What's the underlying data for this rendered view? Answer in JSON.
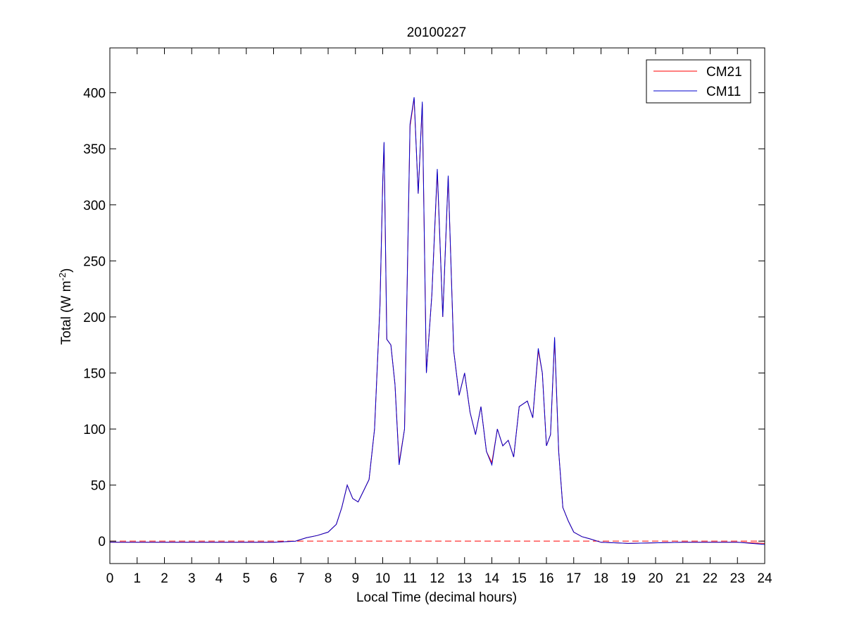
{
  "chart_data": {
    "type": "line",
    "title": "20100227",
    "xlabel": "Local Time (decimal hours)",
    "ylabel_main": "Total (W m",
    "ylabel_sup": "-2",
    "ylabel_tail": ")",
    "xlim": [
      0,
      24
    ],
    "ylim": [
      -20,
      440
    ],
    "xticks": [
      0,
      1,
      2,
      3,
      4,
      5,
      6,
      7,
      8,
      9,
      10,
      11,
      12,
      13,
      14,
      15,
      16,
      17,
      18,
      19,
      20,
      21,
      22,
      23,
      24
    ],
    "yticks": [
      0,
      50,
      100,
      150,
      200,
      250,
      300,
      350,
      400
    ],
    "grid": false,
    "legend_position": "top-right",
    "reference_line": {
      "y": 0,
      "color": "#ff0000",
      "style": "dashed"
    },
    "series": [
      {
        "name": "CM21",
        "color": "#ff0000",
        "x": [
          0,
          2,
          4,
          6,
          6.8,
          7.2,
          7.6,
          8.0,
          8.3,
          8.5,
          8.7,
          8.9,
          9.1,
          9.3,
          9.5,
          9.7,
          9.9,
          10.0,
          10.05,
          10.15,
          10.3,
          10.45,
          10.6,
          10.8,
          11.0,
          11.15,
          11.3,
          11.45,
          11.6,
          11.8,
          12.0,
          12.2,
          12.4,
          12.6,
          12.8,
          13.0,
          13.2,
          13.4,
          13.6,
          13.8,
          14.0,
          14.2,
          14.4,
          14.6,
          14.8,
          15.0,
          15.3,
          15.5,
          15.7,
          15.85,
          16.0,
          16.15,
          16.3,
          16.45,
          16.6,
          16.8,
          17.0,
          17.3,
          17.6,
          18.0,
          19,
          21,
          23,
          24
        ],
        "y": [
          -1,
          -1,
          -1,
          -1,
          0,
          3,
          5,
          8,
          15,
          30,
          50,
          38,
          35,
          45,
          55,
          100,
          210,
          320,
          355,
          180,
          175,
          140,
          70,
          100,
          370,
          395,
          310,
          390,
          150,
          220,
          330,
          200,
          325,
          170,
          130,
          150,
          115,
          95,
          120,
          80,
          70,
          100,
          85,
          90,
          75,
          120,
          125,
          110,
          170,
          150,
          85,
          95,
          180,
          80,
          30,
          18,
          8,
          4,
          2,
          -1,
          -2,
          -1,
          -1,
          -2
        ]
      },
      {
        "name": "CM11",
        "color": "#0000cc",
        "x": [
          0,
          2,
          4,
          6,
          6.8,
          7.2,
          7.6,
          8.0,
          8.3,
          8.5,
          8.7,
          8.9,
          9.1,
          9.3,
          9.5,
          9.7,
          9.9,
          10.0,
          10.05,
          10.15,
          10.3,
          10.45,
          10.6,
          10.8,
          11.0,
          11.15,
          11.3,
          11.45,
          11.6,
          11.8,
          12.0,
          12.2,
          12.4,
          12.6,
          12.8,
          13.0,
          13.2,
          13.4,
          13.6,
          13.8,
          14.0,
          14.2,
          14.4,
          14.6,
          14.8,
          15.0,
          15.3,
          15.5,
          15.7,
          15.85,
          16.0,
          16.15,
          16.3,
          16.45,
          16.6,
          16.8,
          17.0,
          17.3,
          17.6,
          18.0,
          19,
          21,
          23,
          24
        ],
        "y": [
          -1,
          -1,
          -1,
          -1,
          0,
          3,
          5,
          8,
          15,
          30,
          50,
          38,
          35,
          45,
          55,
          100,
          210,
          320,
          356,
          180,
          175,
          140,
          68,
          100,
          372,
          396,
          310,
          392,
          150,
          220,
          332,
          200,
          326,
          170,
          130,
          150,
          115,
          95,
          120,
          80,
          68,
          100,
          85,
          90,
          75,
          120,
          125,
          110,
          172,
          150,
          85,
          95,
          182,
          80,
          30,
          18,
          8,
          4,
          2,
          -1,
          -2,
          -1,
          -1,
          -3
        ]
      }
    ]
  }
}
